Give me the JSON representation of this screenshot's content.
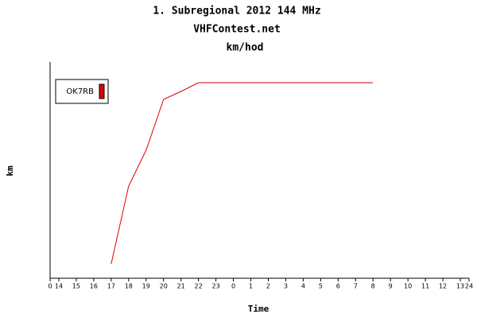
{
  "chart_data": {
    "type": "line",
    "title": "1. Subregional 2012 144 MHz",
    "subtitle": "VHFContest.net",
    "unit_title": "km/hod",
    "x_label": "Time",
    "y_label": "km",
    "xlim": [
      0,
      24
    ],
    "ylim": [
      0,
      272
    ],
    "xticks": [
      0,
      {
        "value": 0.5,
        "label": "14"
      },
      {
        "value": 1.5,
        "label": "15"
      },
      {
        "value": 2.5,
        "label": "16"
      },
      {
        "value": 3.5,
        "label": "17"
      },
      {
        "value": 4.5,
        "label": "18"
      },
      {
        "value": 5.5,
        "label": "19"
      },
      {
        "value": 6.5,
        "label": "20"
      },
      {
        "value": 7.5,
        "label": "21"
      },
      {
        "value": 8.5,
        "label": "22"
      },
      {
        "value": 9.5,
        "label": "23"
      },
      {
        "value": 10.5,
        "label": "0"
      },
      {
        "value": 11.5,
        "label": "1"
      },
      {
        "value": 12.5,
        "label": "2"
      },
      {
        "value": 13.5,
        "label": "3"
      },
      {
        "value": 14.5,
        "label": "4"
      },
      {
        "value": 15.5,
        "label": "5"
      },
      {
        "value": 16.5,
        "label": "6"
      },
      {
        "value": 17.5,
        "label": "7"
      },
      {
        "value": 18.5,
        "label": "8"
      },
      {
        "value": 19.5,
        "label": "9"
      },
      {
        "value": 20.5,
        "label": "10"
      },
      {
        "value": 21.5,
        "label": "11"
      },
      {
        "value": 22.5,
        "label": "12"
      },
      {
        "value": 23.5,
        "label": "13"
      },
      24
    ],
    "x": [
      3.5,
      4.5,
      5.5,
      6.5,
      7.5,
      8.5,
      9.5,
      10.5,
      11.5,
      12.5,
      13.5,
      14.5,
      15.5,
      16.5,
      17.5,
      18.5
    ],
    "series": [
      {
        "name": "OK7RB",
        "color": "#e00000",
        "values": [
          18,
          116,
          161,
          225,
          235,
          246,
          246,
          246,
          246,
          246,
          246,
          246,
          246,
          246,
          246,
          246
        ]
      }
    ]
  }
}
